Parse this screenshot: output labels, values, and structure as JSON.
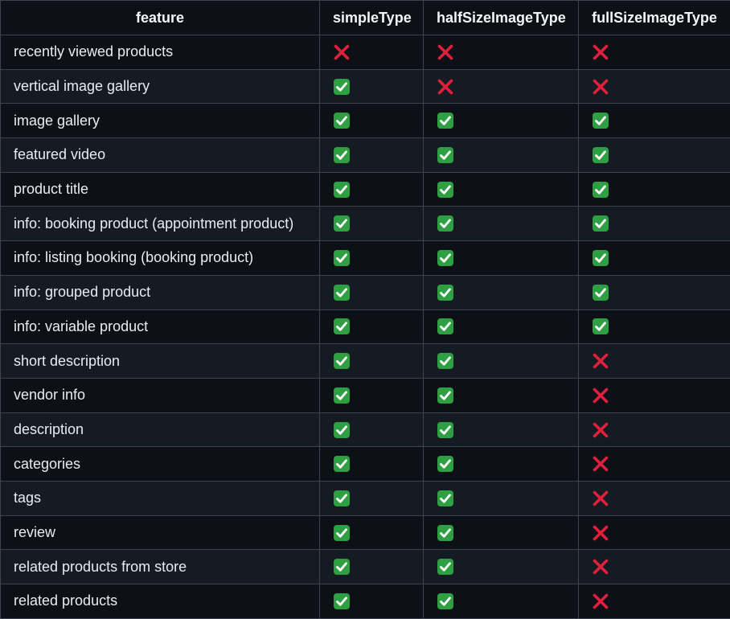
{
  "colors": {
    "check_bg": "#2ea043",
    "check_mark": "#ffffff",
    "cross": "#e0203a"
  },
  "table": {
    "headers": [
      "feature",
      "simpleType",
      "halfSizeImageType",
      "fullSizeImageType"
    ],
    "rows": [
      {
        "feature": "recently viewed products",
        "values": [
          "no",
          "no",
          "no"
        ]
      },
      {
        "feature": "vertical image gallery",
        "values": [
          "yes",
          "no",
          "no"
        ]
      },
      {
        "feature": "image gallery",
        "values": [
          "yes",
          "yes",
          "yes"
        ]
      },
      {
        "feature": "featured video",
        "values": [
          "yes",
          "yes",
          "yes"
        ]
      },
      {
        "feature": "product title",
        "values": [
          "yes",
          "yes",
          "yes"
        ]
      },
      {
        "feature": "info: booking product (appointment product)",
        "values": [
          "yes",
          "yes",
          "yes"
        ]
      },
      {
        "feature": "info: listing booking (booking product)",
        "values": [
          "yes",
          "yes",
          "yes"
        ]
      },
      {
        "feature": "info: grouped product",
        "values": [
          "yes",
          "yes",
          "yes"
        ]
      },
      {
        "feature": "info: variable product",
        "values": [
          "yes",
          "yes",
          "yes"
        ]
      },
      {
        "feature": "short description",
        "values": [
          "yes",
          "yes",
          "no"
        ]
      },
      {
        "feature": "vendor info",
        "values": [
          "yes",
          "yes",
          "no"
        ]
      },
      {
        "feature": "description",
        "values": [
          "yes",
          "yes",
          "no"
        ]
      },
      {
        "feature": "categories",
        "values": [
          "yes",
          "yes",
          "no"
        ]
      },
      {
        "feature": "tags",
        "values": [
          "yes",
          "yes",
          "no"
        ]
      },
      {
        "feature": "review",
        "values": [
          "yes",
          "yes",
          "no"
        ]
      },
      {
        "feature": "related products from store",
        "values": [
          "yes",
          "yes",
          "no"
        ]
      },
      {
        "feature": "related products",
        "values": [
          "yes",
          "yes",
          "no"
        ]
      }
    ]
  }
}
